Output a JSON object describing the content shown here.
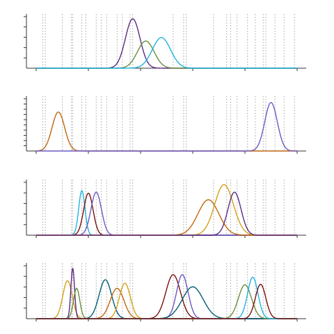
{
  "chart_data": {
    "type": "line",
    "xlim": [
      0,
      100
    ],
    "vlines": [
      2.5,
      3.5,
      10,
      13.5,
      14,
      17.5,
      19,
      23,
      25,
      27,
      31,
      33,
      36,
      37,
      52.5,
      56.5,
      57.5,
      68,
      73,
      74.5,
      77,
      81,
      84,
      87,
      88,
      91.5,
      95,
      99
    ],
    "panels": [
      {
        "ylim": [
          0,
          1.1
        ],
        "series": [
          {
            "color": "#5a2a82",
            "mu": 37,
            "sigma": 2.8,
            "amp": 1.0
          },
          {
            "color": "#6b8e3e",
            "mu": 42,
            "sigma": 3.2,
            "amp": 0.55
          },
          {
            "color": "#1fb2e0",
            "mu": 48,
            "sigma": 3.5,
            "amp": 0.62
          }
        ]
      },
      {
        "ylim": [
          0,
          1.1
        ],
        "series": [
          {
            "color": "#c0650c",
            "mu": 8.5,
            "sigma": 2.4,
            "amp": 0.78
          },
          {
            "color": "#6b58c4",
            "mu": 90,
            "sigma": 2.4,
            "amp": 0.97
          }
        ]
      },
      {
        "ylim": [
          0,
          1.1
        ],
        "series": [
          {
            "color": "#1fb2e0",
            "mu": 17.5,
            "sigma": 1.2,
            "amp": 0.88
          },
          {
            "color": "#7a1010",
            "mu": 20,
            "sigma": 1.8,
            "amp": 0.83
          },
          {
            "color": "#6b58c4",
            "mu": 23,
            "sigma": 2.0,
            "amp": 0.85
          },
          {
            "color": "#c0650c",
            "mu": 66,
            "sigma": 4.0,
            "amp": 0.7
          },
          {
            "color": "#d4a017",
            "mu": 72,
            "sigma": 3.6,
            "amp": 1.0
          },
          {
            "color": "#5a2a82",
            "mu": 76,
            "sigma": 2.5,
            "amp": 0.85
          }
        ]
      },
      {
        "ylim": [
          0,
          1.1
        ],
        "series": [
          {
            "color": "#d4a017",
            "mu": 12,
            "sigma": 1.8,
            "amp": 0.75
          },
          {
            "color": "#5a2a82",
            "mu": 14,
            "sigma": 0.7,
            "amp": 1.0
          },
          {
            "color": "#6b8e3e",
            "mu": 15.5,
            "sigma": 1.2,
            "amp": 0.6
          },
          {
            "color": "#005c73",
            "mu": 26.5,
            "sigma": 2.4,
            "amp": 0.77
          },
          {
            "color": "#c0650c",
            "mu": 31,
            "sigma": 2.6,
            "amp": 0.6
          },
          {
            "color": "#d4a017",
            "mu": 34,
            "sigma": 2.1,
            "amp": 0.7
          },
          {
            "color": "#7a1010",
            "mu": 52.5,
            "sigma": 2.8,
            "amp": 0.87
          },
          {
            "color": "#6b58c4",
            "mu": 56,
            "sigma": 2.2,
            "amp": 0.87
          },
          {
            "color": "#005c73",
            "mu": 60,
            "sigma": 4.0,
            "amp": 0.63
          },
          {
            "color": "#6b8e3e",
            "mu": 80,
            "sigma": 2.5,
            "amp": 0.67
          },
          {
            "color": "#1fb2e0",
            "mu": 83,
            "sigma": 2.0,
            "amp": 0.82
          },
          {
            "color": "#7a1010",
            "mu": 86,
            "sigma": 2.0,
            "amp": 0.68
          }
        ]
      }
    ]
  }
}
